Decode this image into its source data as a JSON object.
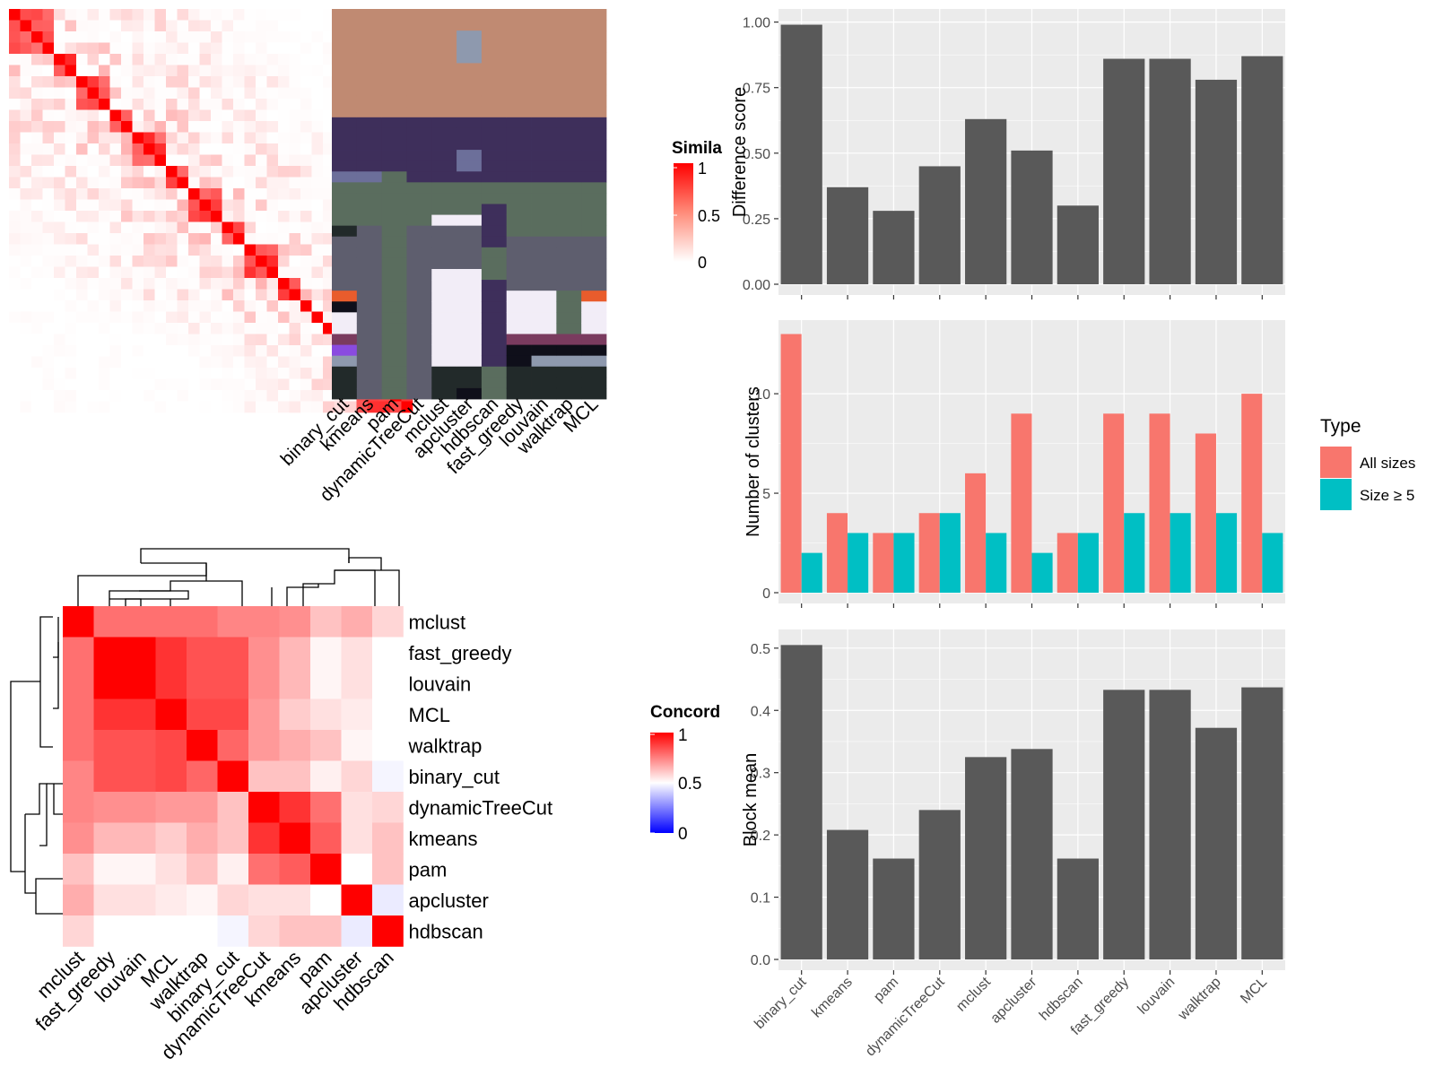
{
  "methods": [
    "binary_cut",
    "kmeans",
    "pam",
    "dynamicTreeCut",
    "mclust",
    "apcluster",
    "hdbscan",
    "fast_greedy",
    "louvain",
    "walktrap",
    "MCL"
  ],
  "chart_data": [
    {
      "id": "similarity-heatmap",
      "type": "heatmap",
      "legend": {
        "title": "Simila",
        "ticks": [
          "1",
          "0.5",
          "0"
        ]
      },
      "column_labels": [
        "binary_cut",
        "kmeans",
        "pam",
        "dynamicTreeCut",
        "mclust",
        "apcluster",
        "hdbscan",
        "fast_greedy",
        "louvain",
        "walktrap",
        "MCL"
      ],
      "diagonal_blocks": [
        4,
        2,
        3,
        2,
        3,
        2,
        3,
        2,
        3,
        2,
        1,
        1,
        1,
        1,
        1,
        1
      ]
    },
    {
      "id": "concordance-heatmap",
      "type": "heatmap",
      "legend": {
        "title": "Concord",
        "ticks": [
          "1",
          "0.5",
          "0"
        ]
      },
      "labels": [
        "mclust",
        "fast_greedy",
        "louvain",
        "MCL",
        "walktrap",
        "binary_cut",
        "dynamicTreeCut",
        "kmeans",
        "pam",
        "apcluster",
        "hdbscan"
      ],
      "values": [
        [
          1.0,
          0.78,
          0.78,
          0.78,
          0.78,
          0.74,
          0.74,
          0.72,
          0.62,
          0.66,
          0.58
        ],
        [
          0.78,
          1.0,
          1.0,
          0.9,
          0.84,
          0.84,
          0.72,
          0.64,
          0.52,
          0.56,
          0.5
        ],
        [
          0.78,
          1.0,
          1.0,
          0.9,
          0.84,
          0.84,
          0.72,
          0.64,
          0.52,
          0.56,
          0.5
        ],
        [
          0.78,
          0.9,
          0.9,
          1.0,
          0.86,
          0.86,
          0.7,
          0.6,
          0.56,
          0.54,
          0.5
        ],
        [
          0.78,
          0.84,
          0.84,
          0.86,
          1.0,
          0.8,
          0.7,
          0.66,
          0.62,
          0.52,
          0.5
        ],
        [
          0.74,
          0.84,
          0.84,
          0.86,
          0.8,
          1.0,
          0.62,
          0.62,
          0.53,
          0.58,
          0.48
        ],
        [
          0.74,
          0.72,
          0.72,
          0.7,
          0.7,
          0.62,
          1.0,
          0.9,
          0.78,
          0.56,
          0.58
        ],
        [
          0.72,
          0.64,
          0.64,
          0.6,
          0.66,
          0.62,
          0.9,
          1.0,
          0.82,
          0.56,
          0.62
        ],
        [
          0.62,
          0.52,
          0.52,
          0.56,
          0.62,
          0.53,
          0.78,
          0.82,
          1.0,
          0.5,
          0.62
        ],
        [
          0.66,
          0.56,
          0.56,
          0.54,
          0.52,
          0.58,
          0.56,
          0.56,
          0.5,
          1.0,
          0.46
        ],
        [
          0.58,
          0.5,
          0.5,
          0.5,
          0.5,
          0.48,
          0.58,
          0.62,
          0.62,
          0.46,
          1.0
        ]
      ]
    },
    {
      "id": "difference-score",
      "type": "bar",
      "ylabel": "Difference score",
      "ylim": [
        0,
        1.05
      ],
      "yticks": [
        "0.00",
        "0.25",
        "0.50",
        "0.75",
        "1.00"
      ],
      "categories": [
        "binary_cut",
        "kmeans",
        "pam",
        "dynamicTreeCut",
        "mclust",
        "apcluster",
        "hdbscan",
        "fast_greedy",
        "louvain",
        "walktrap",
        "MCL"
      ],
      "values": [
        0.99,
        0.37,
        0.28,
        0.45,
        0.63,
        0.51,
        0.3,
        0.86,
        0.86,
        0.78,
        0.87
      ]
    },
    {
      "id": "number-of-clusters",
      "type": "bar",
      "ylabel": "Number of clusters",
      "ylim": [
        0,
        13.7
      ],
      "yticks": [
        "0",
        "5",
        "10"
      ],
      "legend": {
        "title": "Type",
        "position": "right"
      },
      "categories": [
        "binary_cut",
        "kmeans",
        "pam",
        "dynamicTreeCut",
        "mclust",
        "apcluster",
        "hdbscan",
        "fast_greedy",
        "louvain",
        "walktrap",
        "MCL"
      ],
      "series": [
        {
          "name": "All sizes",
          "color": "#F8766D",
          "values": [
            13,
            4,
            3,
            4,
            6,
            9,
            3,
            9,
            9,
            8,
            10
          ]
        },
        {
          "name": "Size ≥ 5",
          "color": "#00BFC4",
          "values": [
            2,
            3,
            3,
            4,
            3,
            2,
            3,
            4,
            4,
            4,
            3
          ]
        }
      ]
    },
    {
      "id": "block-mean",
      "type": "bar",
      "ylabel": "Block mean",
      "ylim": [
        0,
        0.53
      ],
      "yticks": [
        "0.0",
        "0.1",
        "0.2",
        "0.3",
        "0.4",
        "0.5"
      ],
      "categories": [
        "binary_cut",
        "kmeans",
        "pam",
        "dynamicTreeCut",
        "mclust",
        "apcluster",
        "hdbscan",
        "fast_greedy",
        "louvain",
        "walktrap",
        "MCL"
      ],
      "values": [
        0.505,
        0.208,
        0.162,
        0.24,
        0.325,
        0.338,
        0.162,
        0.433,
        0.433,
        0.372,
        0.437
      ]
    }
  ],
  "colors": {
    "panel_bg": "#EBEBEB",
    "bar": "#595959",
    "heat_high": "#FF0000",
    "heat_mid": "#FFFFFF",
    "heat_low": "#0000FF"
  }
}
